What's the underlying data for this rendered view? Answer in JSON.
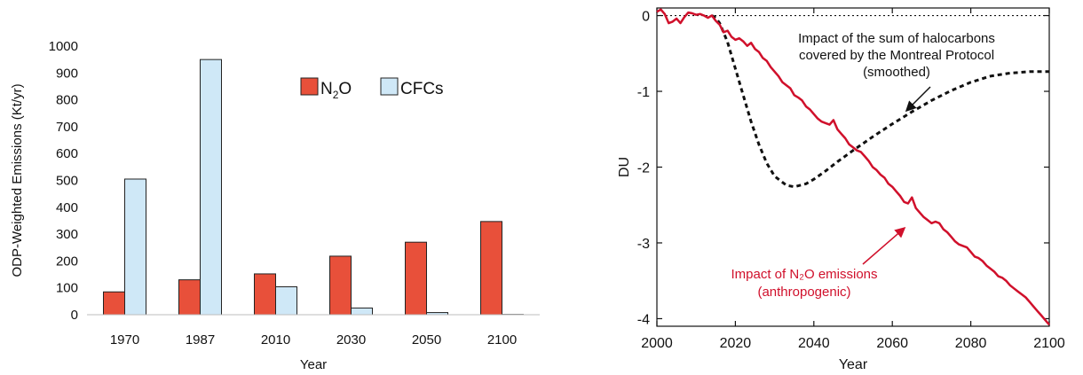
{
  "chart_data": [
    {
      "type": "bar",
      "title": "",
      "xlabel": "Year",
      "ylabel": "ODP-Weighted Emissions (Kt/yr)",
      "ylim": [
        0,
        1000
      ],
      "yticks": [
        "0",
        "100",
        "200",
        "300",
        "400",
        "500",
        "600",
        "700",
        "800",
        "900",
        "1000"
      ],
      "categories": [
        "1970",
        "1987",
        "2010",
        "2030",
        "2050",
        "2100"
      ],
      "legend_position": "top-right",
      "series": [
        {
          "name_base": "N",
          "name_sub": "2",
          "name_tail": "O",
          "color": "#e8503a",
          "values": [
            85,
            130,
            152,
            218,
            270,
            347
          ]
        },
        {
          "name": "CFCs",
          "color": "#cfe8f7",
          "values": [
            505,
            950,
            104,
            25,
            8,
            1
          ]
        }
      ]
    },
    {
      "type": "line",
      "title": "",
      "xlabel": "Year",
      "ylabel": "DU",
      "xlim": [
        2000,
        2100
      ],
      "ylim": [
        -4.1,
        0.1
      ],
      "xticks": [
        "2000",
        "2020",
        "2040",
        "2060",
        "2080",
        "2100"
      ],
      "yticks": [
        "0",
        "-1",
        "-2",
        "-3",
        "-4"
      ],
      "zero_line": true,
      "series": [
        {
          "name": "halocarbons",
          "color": "#111111",
          "style": "dashed",
          "x": [
            2014,
            2015,
            2016,
            2018,
            2020,
            2022,
            2024,
            2026,
            2028,
            2030,
            2033,
            2035,
            2038,
            2040,
            2043,
            2046,
            2050,
            2055,
            2060,
            2065,
            2070,
            2075,
            2080,
            2085,
            2090,
            2095,
            2100
          ],
          "y": [
            0,
            -0.03,
            -0.1,
            -0.35,
            -0.7,
            -1.05,
            -1.4,
            -1.7,
            -1.95,
            -2.12,
            -2.24,
            -2.26,
            -2.22,
            -2.16,
            -2.05,
            -1.93,
            -1.78,
            -1.6,
            -1.43,
            -1.27,
            -1.12,
            -0.99,
            -0.88,
            -0.8,
            -0.76,
            -0.74,
            -0.74
          ]
        },
        {
          "name": "N2O",
          "color": "#d0102b",
          "style": "solid",
          "x": [
            2000,
            2001,
            2002,
            2003,
            2004,
            2005,
            2006,
            2007,
            2008,
            2009,
            2010,
            2011,
            2012,
            2013,
            2014,
            2015,
            2016,
            2017,
            2018,
            2019,
            2020,
            2021,
            2022,
            2023,
            2024,
            2025,
            2026,
            2027,
            2028,
            2029,
            2030,
            2031,
            2032,
            2033,
            2034,
            2035,
            2036,
            2037,
            2038,
            2039,
            2040,
            2041,
            2042,
            2043,
            2044,
            2045,
            2046,
            2047,
            2048,
            2049,
            2050,
            2051,
            2052,
            2053,
            2054,
            2055,
            2056,
            2057,
            2058,
            2059,
            2060,
            2061,
            2062,
            2063,
            2064,
            2065,
            2066,
            2067,
            2068,
            2069,
            2070,
            2071,
            2072,
            2073,
            2074,
            2075,
            2076,
            2077,
            2078,
            2079,
            2080,
            2081,
            2082,
            2083,
            2084,
            2085,
            2086,
            2087,
            2088,
            2089,
            2090,
            2091,
            2092,
            2093,
            2094,
            2095,
            2096,
            2097,
            2098,
            2099,
            2100
          ],
          "y": [
            0.05,
            0.08,
            0.02,
            -0.1,
            -0.08,
            -0.04,
            -0.1,
            -0.02,
            0.04,
            0.03,
            0.01,
            0.02,
            0,
            -0.03,
            0,
            -0.07,
            -0.12,
            -0.22,
            -0.2,
            -0.28,
            -0.32,
            -0.3,
            -0.34,
            -0.4,
            -0.36,
            -0.44,
            -0.48,
            -0.56,
            -0.6,
            -0.68,
            -0.74,
            -0.8,
            -0.88,
            -0.92,
            -0.96,
            -1.05,
            -1.08,
            -1.12,
            -1.2,
            -1.24,
            -1.3,
            -1.36,
            -1.4,
            -1.42,
            -1.44,
            -1.38,
            -1.5,
            -1.56,
            -1.62,
            -1.7,
            -1.74,
            -1.78,
            -1.8,
            -1.86,
            -1.92,
            -2,
            -2.04,
            -2.1,
            -2.14,
            -2.22,
            -2.26,
            -2.32,
            -2.38,
            -2.46,
            -2.48,
            -2.4,
            -2.54,
            -2.6,
            -2.66,
            -2.7,
            -2.74,
            -2.72,
            -2.74,
            -2.82,
            -2.86,
            -2.92,
            -2.98,
            -3.02,
            -3.04,
            -3.06,
            -3.12,
            -3.18,
            -3.2,
            -3.24,
            -3.3,
            -3.34,
            -3.38,
            -3.44,
            -3.46,
            -3.5,
            -3.56,
            -3.6,
            -3.64,
            -3.68,
            -3.72,
            -3.78,
            -3.84,
            -3.9,
            -3.96,
            -4.02,
            -4.08
          ]
        }
      ],
      "annotations": {
        "halocarbons_lines": [
          "Impact of the sum of halocarbons",
          "covered by the Montreal Protocol",
          "(smoothed)"
        ],
        "n2o_lines": [
          "Impact of N₂O emissions",
          "(anthropogenic)"
        ]
      }
    }
  ]
}
